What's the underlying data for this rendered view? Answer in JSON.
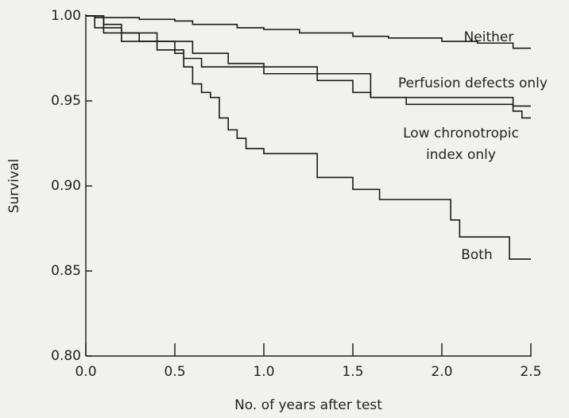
{
  "chart_data": {
    "type": "step",
    "x_label": "No. of years after test",
    "y_label": "Survival",
    "xlim": [
      0,
      2.5
    ],
    "ylim": [
      0.8,
      1.0
    ],
    "xticks": [
      {
        "value": 0,
        "label": "0.0"
      },
      0.5,
      {
        "value": 1,
        "label": "1.0"
      },
      1.5,
      {
        "value": 2,
        "label": "2.0"
      },
      2.5
    ],
    "yticks": [
      {
        "value": 0.8,
        "label": "0.80"
      },
      0.85,
      {
        "value": 0.9,
        "label": "0.90"
      },
      0.95,
      {
        "value": 1.0,
        "label": "1.00"
      }
    ],
    "color": "#1a1a1a",
    "series": [
      {
        "name": "Neither",
        "x": [
          0,
          0.05,
          0.3,
          0.5,
          0.6,
          0.85,
          1.0,
          1.2,
          1.5,
          1.7,
          2.0,
          2.2,
          2.4,
          2.5
        ],
        "values": [
          1.0,
          0.999,
          0.998,
          0.997,
          0.995,
          0.993,
          0.992,
          0.99,
          0.988,
          0.987,
          0.985,
          0.984,
          0.981,
          0.981
        ]
      },
      {
        "name": "Perfusion defects only",
        "x": [
          0,
          0.1,
          0.2,
          0.4,
          0.6,
          0.8,
          1.0,
          1.3,
          1.6,
          2.4,
          2.5
        ],
        "values": [
          1.0,
          0.995,
          0.99,
          0.985,
          0.978,
          0.972,
          0.97,
          0.966,
          0.952,
          0.947,
          0.947
        ]
      },
      {
        "name": "Low chronotropic index only",
        "x": [
          0,
          0.05,
          0.2,
          0.4,
          0.55,
          0.65,
          1.0,
          1.3,
          1.5,
          1.6,
          1.8,
          2.4,
          2.45,
          2.5
        ],
        "values": [
          1.0,
          0.993,
          0.985,
          0.98,
          0.975,
          0.97,
          0.966,
          0.962,
          0.955,
          0.952,
          0.948,
          0.944,
          0.94,
          0.94
        ]
      },
      {
        "name": "Both",
        "x": [
          0,
          0.1,
          0.3,
          0.5,
          0.55,
          0.6,
          0.65,
          0.7,
          0.75,
          0.8,
          0.85,
          0.9,
          1.0,
          1.3,
          1.5,
          1.65,
          2.05,
          2.1,
          2.38,
          2.5
        ],
        "values": [
          1.0,
          0.99,
          0.985,
          0.978,
          0.97,
          0.96,
          0.955,
          0.952,
          0.94,
          0.933,
          0.928,
          0.922,
          0.919,
          0.905,
          0.898,
          0.892,
          0.88,
          0.87,
          0.857,
          0.857
        ]
      }
    ]
  }
}
